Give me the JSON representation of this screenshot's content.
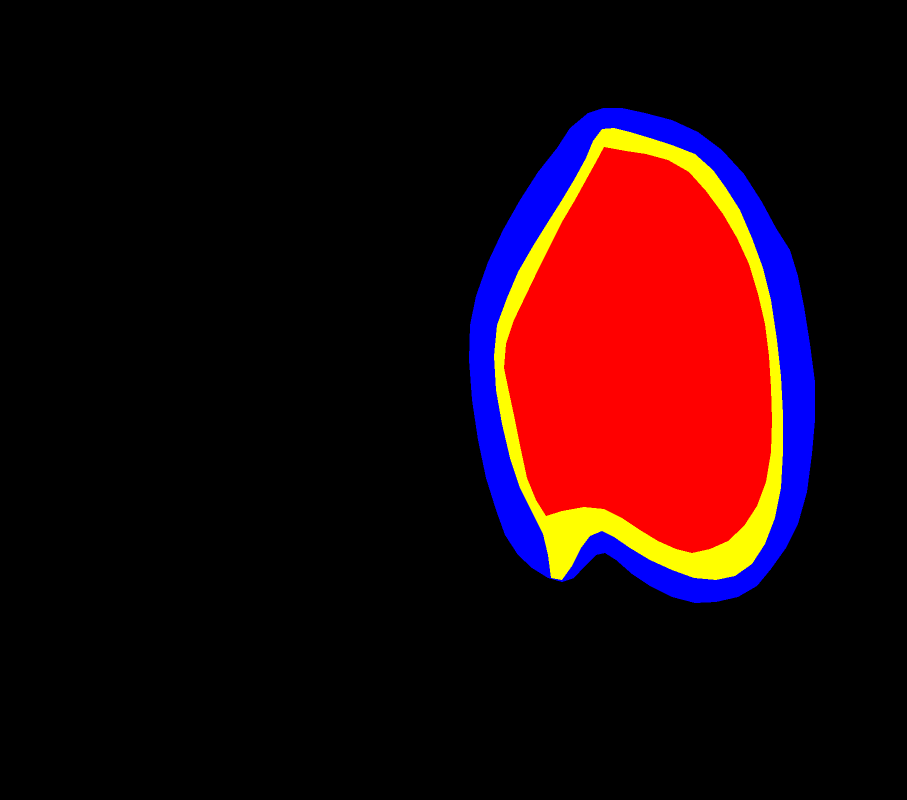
{
  "image": {
    "background_color": "#000000",
    "regions": [
      {
        "name": "outer-region",
        "color": "#0000ff"
      },
      {
        "name": "middle-region",
        "color": "#ffff00"
      },
      {
        "name": "inner-region",
        "color": "#ff0000"
      }
    ]
  }
}
